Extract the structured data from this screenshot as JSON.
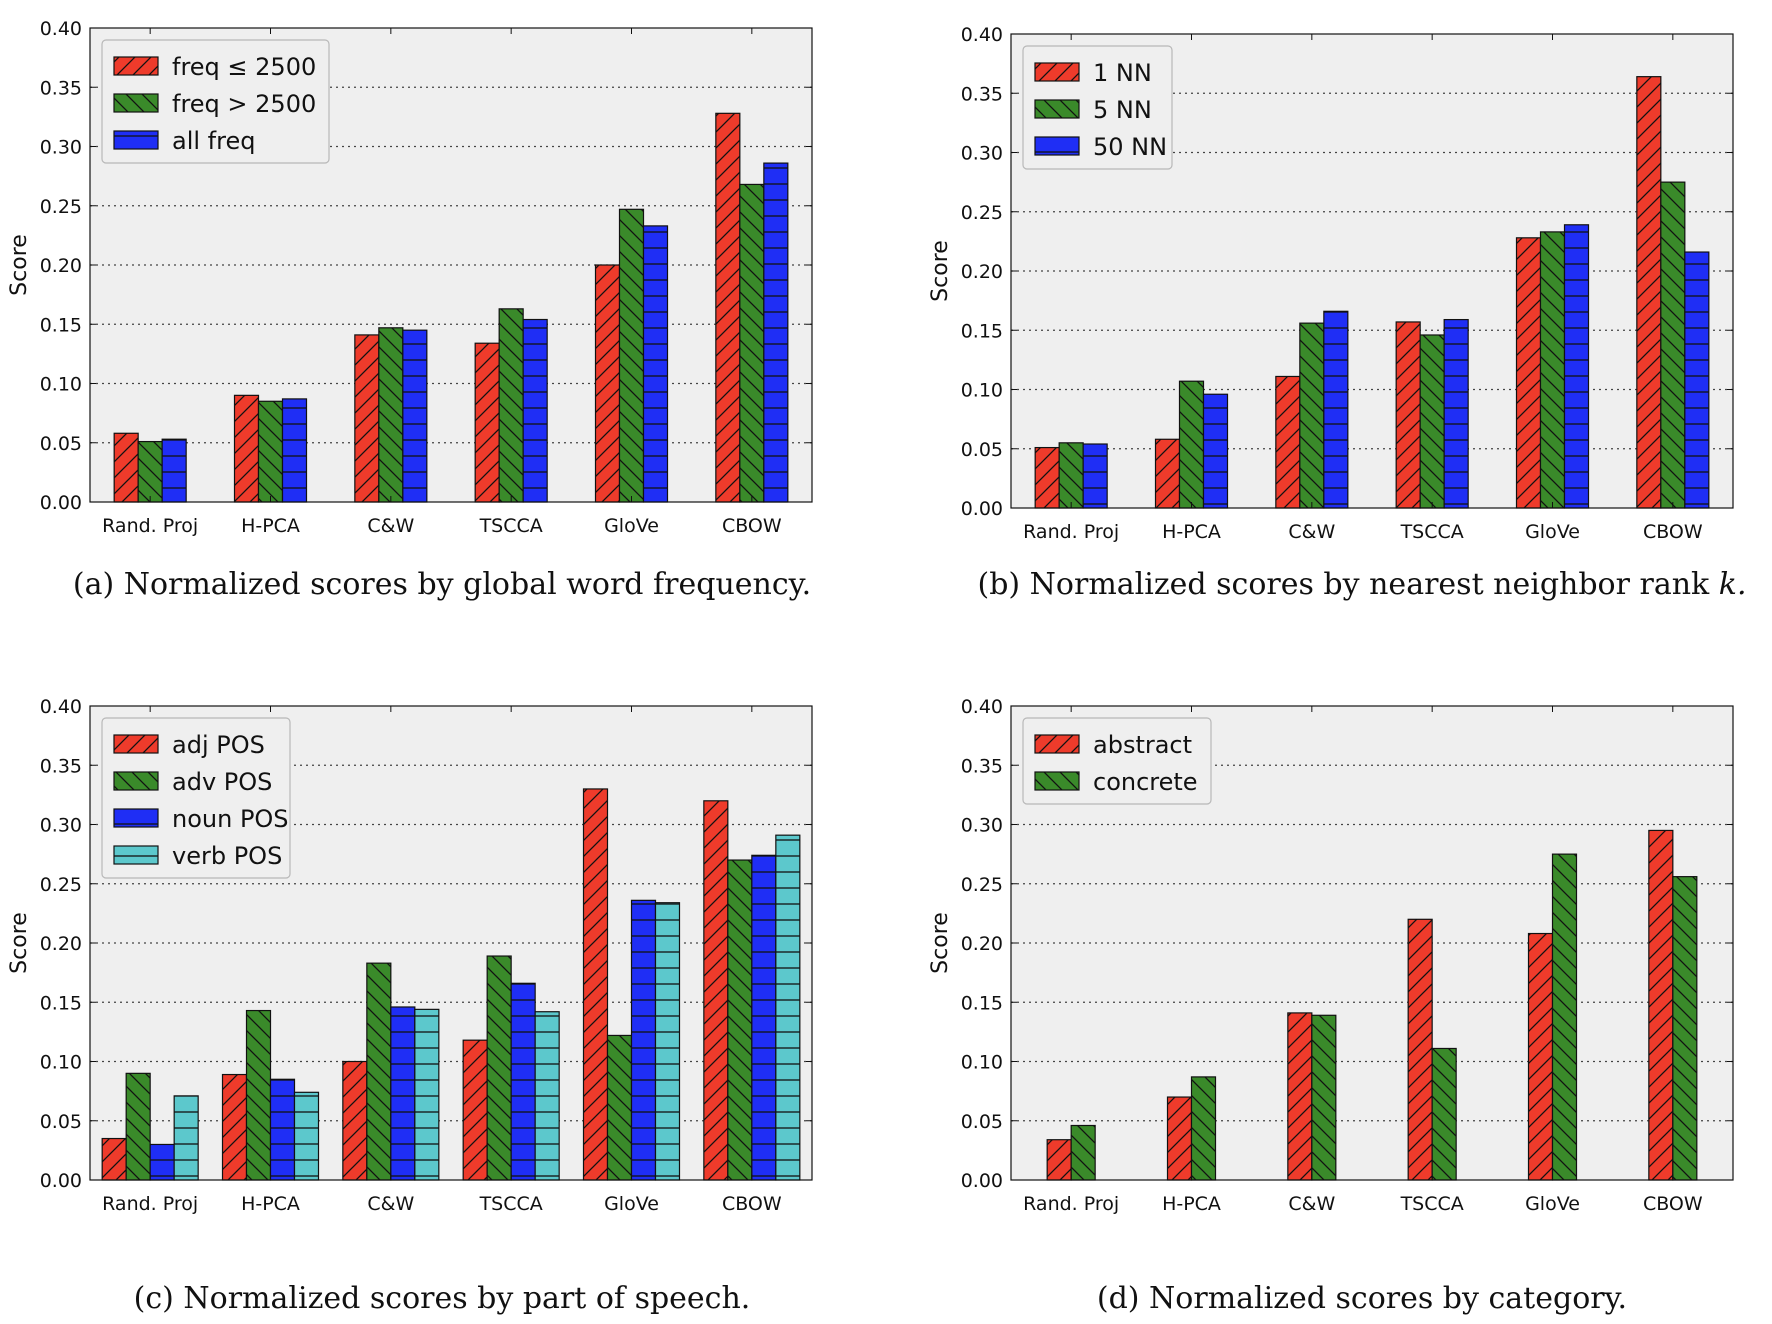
{
  "figure": {
    "colors": {
      "red": "#ee3b2b",
      "green": "#3a8a2a",
      "blue": "#1f2ef5",
      "cyan": "#5cc8cc",
      "plot_bg": "#efefef"
    }
  },
  "chart_data": [
    {
      "type": "bar",
      "panel": "a",
      "caption": "(a)  Normalized scores by global word frequency.",
      "ylabel": "Score",
      "xlabel": "",
      "ylim": [
        0,
        0.4
      ],
      "yticks": [
        "0.00",
        "0.05",
        "0.10",
        "0.15",
        "0.20",
        "0.25",
        "0.30",
        "0.35",
        "0.40"
      ],
      "grid": true,
      "legend_position": "top-left",
      "categories": [
        "Rand. Proj",
        "H-PCA",
        "C&W",
        "TSCCA",
        "GloVe",
        "CBOW"
      ],
      "series": [
        {
          "name": "freq ≤ 2500",
          "color": "red",
          "hatch": "forward",
          "values": [
            0.058,
            0.09,
            0.141,
            0.134,
            0.2,
            0.328
          ]
        },
        {
          "name": "freq > 2500",
          "color": "green",
          "hatch": "back",
          "values": [
            0.051,
            0.085,
            0.147,
            0.163,
            0.247,
            0.268
          ]
        },
        {
          "name": "all freq",
          "color": "blue",
          "hatch": "horizontal",
          "values": [
            0.053,
            0.087,
            0.145,
            0.154,
            0.233,
            0.286
          ]
        }
      ]
    },
    {
      "type": "bar",
      "panel": "b",
      "caption": "(b)  Normalized scores by nearest neighbor rank ",
      "caption_math": "k.",
      "ylabel": "Score",
      "xlabel": "",
      "ylim": [
        0,
        0.4
      ],
      "yticks": [
        "0.00",
        "0.05",
        "0.10",
        "0.15",
        "0.20",
        "0.25",
        "0.30",
        "0.35",
        "0.40"
      ],
      "grid": true,
      "legend_position": "top-left",
      "categories": [
        "Rand. Proj",
        "H-PCA",
        "C&W",
        "TSCCA",
        "GloVe",
        "CBOW"
      ],
      "series": [
        {
          "name": "1 NN",
          "color": "red",
          "hatch": "forward",
          "values": [
            0.051,
            0.058,
            0.111,
            0.157,
            0.228,
            0.364
          ]
        },
        {
          "name": "5 NN",
          "color": "green",
          "hatch": "back",
          "values": [
            0.055,
            0.107,
            0.156,
            0.146,
            0.233,
            0.275
          ]
        },
        {
          "name": "50 NN",
          "color": "blue",
          "hatch": "horizontal",
          "values": [
            0.054,
            0.096,
            0.166,
            0.159,
            0.239,
            0.216
          ]
        }
      ]
    },
    {
      "type": "bar",
      "panel": "c",
      "caption": "(c)  Normalized scores by part of speech.",
      "ylabel": "Score",
      "xlabel": "",
      "ylim": [
        0,
        0.4
      ],
      "yticks": [
        "0.00",
        "0.05",
        "0.10",
        "0.15",
        "0.20",
        "0.25",
        "0.30",
        "0.35",
        "0.40"
      ],
      "grid": true,
      "legend_position": "top-left",
      "categories": [
        "Rand. Proj",
        "H-PCA",
        "C&W",
        "TSCCA",
        "GloVe",
        "CBOW"
      ],
      "series": [
        {
          "name": "adj POS",
          "color": "red",
          "hatch": "forward",
          "values": [
            0.035,
            0.089,
            0.1,
            0.118,
            0.33,
            0.32
          ]
        },
        {
          "name": "adv POS",
          "color": "green",
          "hatch": "back",
          "values": [
            0.09,
            0.143,
            0.183,
            0.189,
            0.122,
            0.27
          ]
        },
        {
          "name": "noun POS",
          "color": "blue",
          "hatch": "horizontal",
          "values": [
            0.03,
            0.085,
            0.146,
            0.166,
            0.236,
            0.274
          ]
        },
        {
          "name": "verb POS",
          "color": "cyan",
          "hatch": "horizontal",
          "values": [
            0.071,
            0.074,
            0.144,
            0.142,
            0.234,
            0.291
          ]
        }
      ]
    },
    {
      "type": "bar",
      "panel": "d",
      "caption": "(d)  Normalized scores by category.",
      "ylabel": "Score",
      "xlabel": "",
      "ylim": [
        0,
        0.4
      ],
      "yticks": [
        "0.00",
        "0.05",
        "0.10",
        "0.15",
        "0.20",
        "0.25",
        "0.30",
        "0.35",
        "0.40"
      ],
      "grid": true,
      "legend_position": "top-left",
      "categories": [
        "Rand. Proj",
        "H-PCA",
        "C&W",
        "TSCCA",
        "GloVe",
        "CBOW"
      ],
      "series": [
        {
          "name": "abstract",
          "color": "red",
          "hatch": "forward",
          "values": [
            0.034,
            0.07,
            0.141,
            0.22,
            0.208,
            0.295
          ]
        },
        {
          "name": "concrete",
          "color": "green",
          "hatch": "back",
          "values": [
            0.046,
            0.087,
            0.139,
            0.111,
            0.275,
            0.256
          ]
        }
      ]
    }
  ]
}
